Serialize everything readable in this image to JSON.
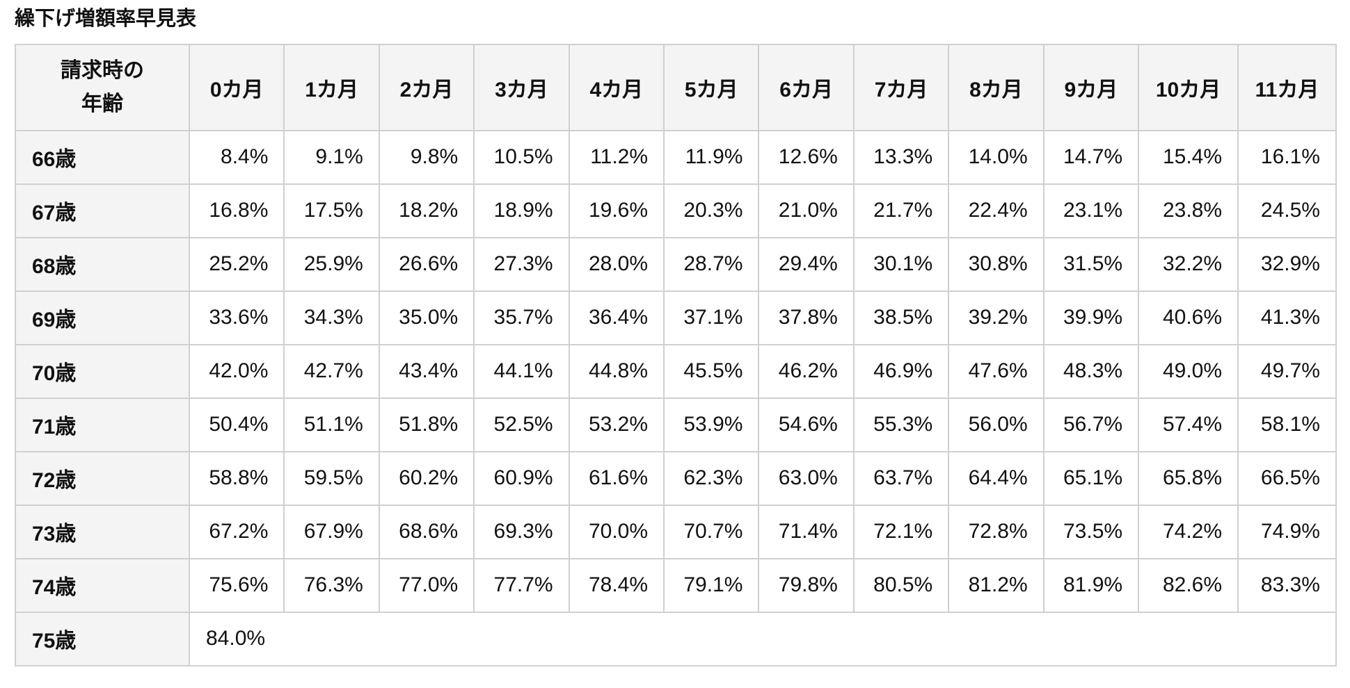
{
  "page": {
    "title": "繰下げ増額率早見表"
  },
  "table": {
    "corner_header": {
      "line1": "請求時の",
      "line2": "年齢"
    },
    "month_headers": [
      "0カ月",
      "1カ月",
      "2カ月",
      "3カ月",
      "4カ月",
      "5カ月",
      "6カ月",
      "7カ月",
      "8カ月",
      "9カ月",
      "10カ月",
      "11カ月"
    ],
    "rows": [
      {
        "age": "66歳",
        "values": [
          "8.4%",
          "9.1%",
          "9.8%",
          "10.5%",
          "11.2%",
          "11.9%",
          "12.6%",
          "13.3%",
          "14.0%",
          "14.7%",
          "15.4%",
          "16.1%"
        ]
      },
      {
        "age": "67歳",
        "values": [
          "16.8%",
          "17.5%",
          "18.2%",
          "18.9%",
          "19.6%",
          "20.3%",
          "21.0%",
          "21.7%",
          "22.4%",
          "23.1%",
          "23.8%",
          "24.5%"
        ]
      },
      {
        "age": "68歳",
        "values": [
          "25.2%",
          "25.9%",
          "26.6%",
          "27.3%",
          "28.0%",
          "28.7%",
          "29.4%",
          "30.1%",
          "30.8%",
          "31.5%",
          "32.2%",
          "32.9%"
        ]
      },
      {
        "age": "69歳",
        "values": [
          "33.6%",
          "34.3%",
          "35.0%",
          "35.7%",
          "36.4%",
          "37.1%",
          "37.8%",
          "38.5%",
          "39.2%",
          "39.9%",
          "40.6%",
          "41.3%"
        ]
      },
      {
        "age": "70歳",
        "values": [
          "42.0%",
          "42.7%",
          "43.4%",
          "44.1%",
          "44.8%",
          "45.5%",
          "46.2%",
          "46.9%",
          "47.6%",
          "48.3%",
          "49.0%",
          "49.7%"
        ]
      },
      {
        "age": "71歳",
        "values": [
          "50.4%",
          "51.1%",
          "51.8%",
          "52.5%",
          "53.2%",
          "53.9%",
          "54.6%",
          "55.3%",
          "56.0%",
          "56.7%",
          "57.4%",
          "58.1%"
        ]
      },
      {
        "age": "72歳",
        "values": [
          "58.8%",
          "59.5%",
          "60.2%",
          "60.9%",
          "61.6%",
          "62.3%",
          "63.0%",
          "63.7%",
          "64.4%",
          "65.1%",
          "65.8%",
          "66.5%"
        ]
      },
      {
        "age": "73歳",
        "values": [
          "67.2%",
          "67.9%",
          "68.6%",
          "69.3%",
          "70.0%",
          "70.7%",
          "71.4%",
          "72.1%",
          "72.8%",
          "73.5%",
          "74.2%",
          "74.9%"
        ]
      },
      {
        "age": "74歳",
        "values": [
          "75.6%",
          "76.3%",
          "77.0%",
          "77.7%",
          "78.4%",
          "79.1%",
          "79.8%",
          "80.5%",
          "81.2%",
          "81.9%",
          "82.6%",
          "83.3%"
        ]
      },
      {
        "age": "75歳",
        "values": [
          "84.0%"
        ],
        "colspan": 12,
        "align": "left"
      }
    ]
  },
  "colors": {
    "header_bg": "#f4f4f4",
    "cell_bg": "#ffffff",
    "border": "#d0d0d0",
    "text": "#111111"
  }
}
